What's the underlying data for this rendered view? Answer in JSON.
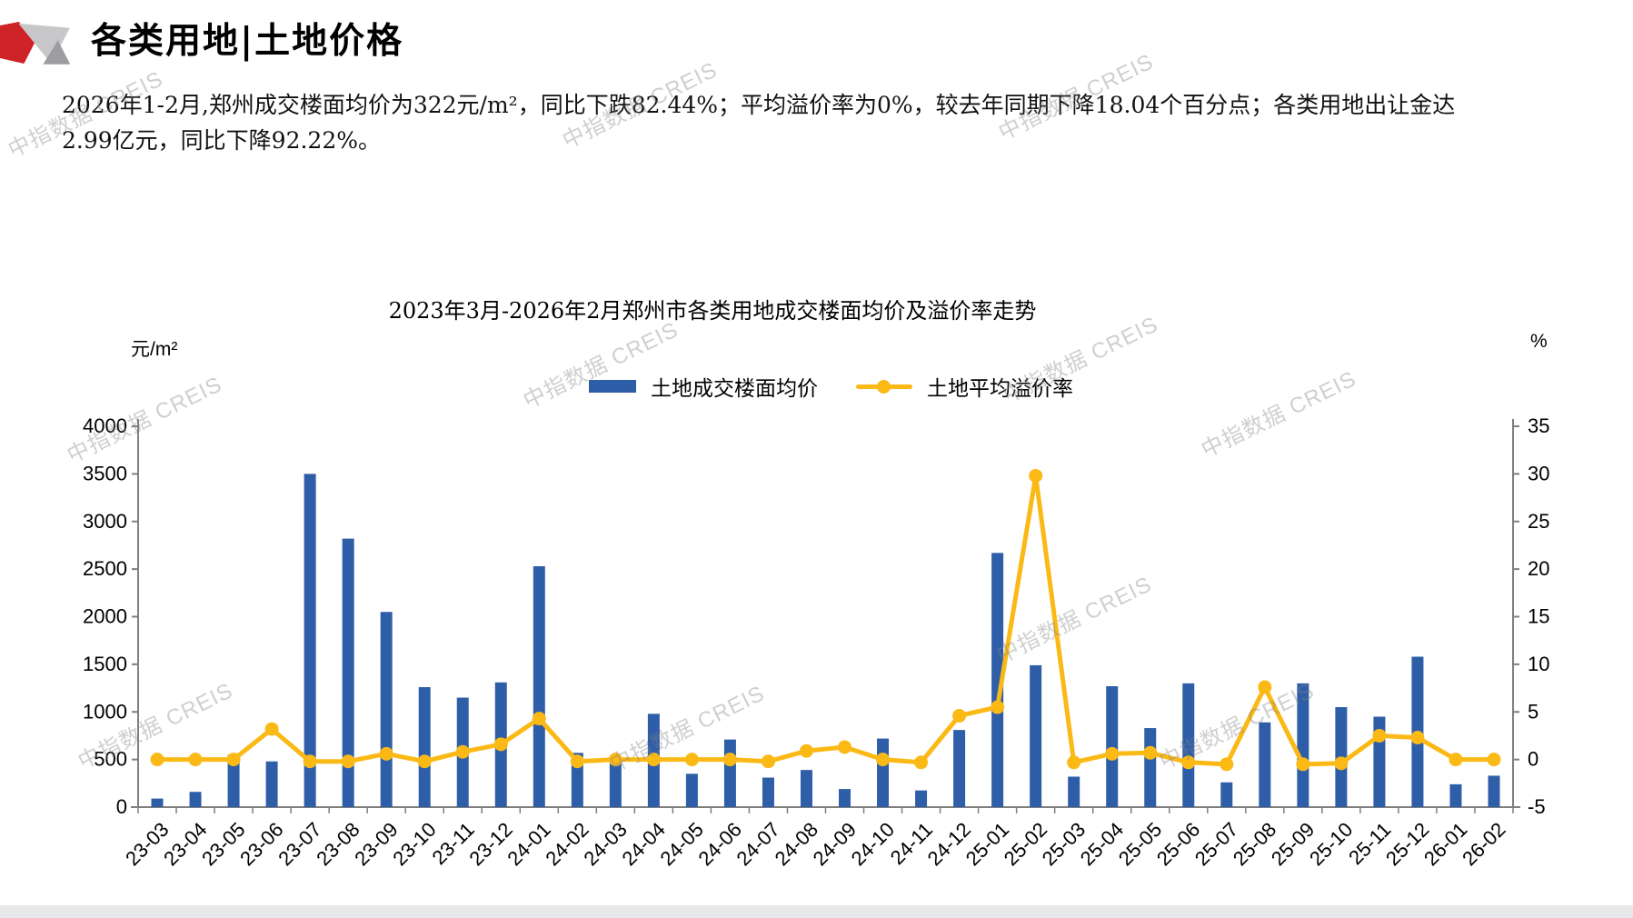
{
  "header": {
    "title": "各类用地|土地价格"
  },
  "summary": {
    "lines": [
      "2026年1-2月,郑州成交楼面均价为322元/m²，同比下跌82.44%；平均溢价率为0%，较去年同期下降18.04个百分点；各类用地出让金达",
      "2.99亿元，同比下降92.22%。"
    ]
  },
  "watermark": {
    "text": "中指数据 CREIS"
  },
  "chart_data": {
    "type": "combo",
    "title": "2023年3月-2026年2月郑州市各类用地成交楼面均价及溢价率走势",
    "categories": [
      "23-03",
      "23-04",
      "23-05",
      "23-06",
      "23-07",
      "23-08",
      "23-09",
      "23-10",
      "23-11",
      "23-12",
      "24-01",
      "24-02",
      "24-03",
      "24-04",
      "24-05",
      "24-06",
      "24-07",
      "24-08",
      "24-09",
      "24-10",
      "24-11",
      "24-12",
      "25-01",
      "25-02",
      "25-03",
      "25-04",
      "25-05",
      "25-06",
      "25-07",
      "25-08",
      "25-09",
      "25-10",
      "25-11",
      "25-12",
      "26-01",
      "26-02"
    ],
    "series": [
      {
        "name": "土地成交楼面均价",
        "type": "bar",
        "axis": "left",
        "color": "#2F5EA8",
        "values": [
          90,
          160,
          550,
          480,
          3500,
          2820,
          2050,
          1260,
          1150,
          1310,
          2530,
          570,
          490,
          980,
          350,
          710,
          310,
          390,
          190,
          720,
          175,
          810,
          2670,
          1490,
          320,
          1270,
          830,
          1300,
          260,
          890,
          1300,
          1050,
          950,
          1580,
          240,
          330
        ]
      },
      {
        "name": "土地平均溢价率",
        "type": "line",
        "axis": "right",
        "color": "#FBB916",
        "values": [
          0,
          0,
          0,
          3.2,
          -0.2,
          -0.2,
          0.6,
          -0.2,
          0.8,
          1.6,
          4.3,
          -0.2,
          0,
          0,
          0,
          0,
          -0.2,
          0.9,
          1.3,
          0,
          -0.3,
          4.6,
          5.5,
          29.8,
          -0.3,
          0.6,
          0.7,
          -0.3,
          -0.5,
          7.6,
          -0.5,
          -0.4,
          2.5,
          2.3,
          0,
          0
        ]
      }
    ],
    "left_axis": {
      "unit": "元/m²",
      "min": 0,
      "max": 4000,
      "step": 500
    },
    "right_axis": {
      "unit": "%",
      "min": -5,
      "max": 35,
      "step": 5
    },
    "legend_position": "top",
    "grid": false
  }
}
